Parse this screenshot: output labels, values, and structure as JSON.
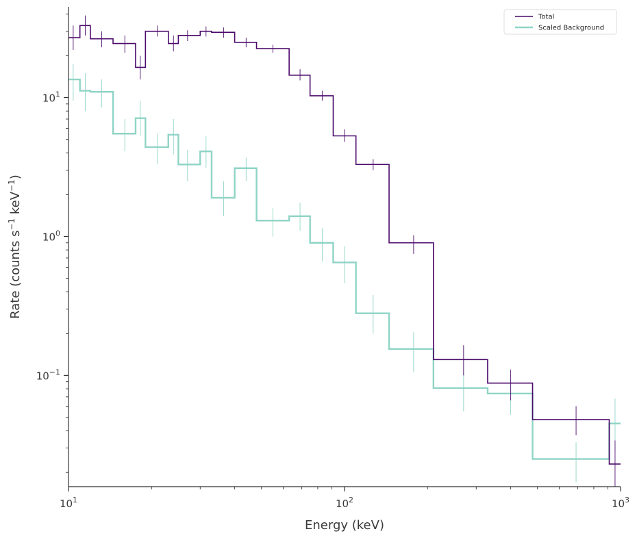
{
  "chart_data": {
    "type": "line",
    "title": "",
    "xlabel": "Energy (keV)",
    "ylabel_main": "Rate (counts s",
    "ylabel_sup1": "−1",
    "ylabel_mid": " keV",
    "ylabel_sup2": "−1",
    "ylabel_end": ")",
    "x_scale": "log",
    "y_scale": "log",
    "xlim": [
      10,
      1000
    ],
    "ylim": [
      0.0158,
      45
    ],
    "x_ticks": [
      {
        "base": "10",
        "exp": "1",
        "value": 10
      },
      {
        "base": "10",
        "exp": "2",
        "value": 100
      },
      {
        "base": "10",
        "exp": "3",
        "value": 1000
      }
    ],
    "y_ticks": [
      {
        "base": "10",
        "exp": "−1",
        "value": 0.1
      },
      {
        "base": "10",
        "exp": "0",
        "value": 1
      },
      {
        "base": "10",
        "exp": "1",
        "value": 10
      }
    ],
    "legend_position": "top-right",
    "grid": false,
    "series": [
      {
        "name": "Total",
        "color": "#4b0a6b",
        "edges": [
          10,
          11,
          12,
          14.5,
          17.5,
          19,
          23,
          25,
          30,
          33,
          40,
          48,
          63,
          75,
          91,
          110,
          145,
          210,
          330,
          480,
          910,
          1000
        ],
        "values": [
          27,
          33,
          26.5,
          24.5,
          16.5,
          30,
          24.5,
          28,
          30,
          29.5,
          25,
          22.5,
          14.5,
          10.3,
          5.3,
          3.3,
          0.9,
          0.13,
          0.088,
          0.048,
          0.023
        ],
        "err_x": [
          10.4,
          11.5,
          13.2,
          16,
          18.2,
          21,
          24,
          27,
          31.5,
          36.5,
          44,
          55,
          69,
          83,
          100,
          127,
          178,
          270,
          400,
          690,
          955
        ],
        "err_lo": [
          22,
          28,
          23,
          21,
          13.5,
          27.5,
          21.5,
          25.5,
          27.5,
          27,
          23,
          21,
          13.3,
          9.5,
          4.8,
          3.0,
          0.75,
          0.1,
          0.066,
          0.037,
          0.014
        ],
        "err_hi": [
          33,
          39,
          30,
          28,
          20,
          33,
          28,
          30.5,
          32.5,
          32,
          27,
          24,
          16,
          11.2,
          5.9,
          3.6,
          1.02,
          0.165,
          0.11,
          0.06,
          0.034
        ]
      },
      {
        "name": "Scaled  Background",
        "color": "#8fd4c6",
        "edges": [
          10,
          11,
          12,
          14.5,
          17.5,
          19,
          23,
          25,
          30,
          33,
          40,
          48,
          63,
          75,
          91,
          110,
          145,
          210,
          330,
          480,
          910,
          1000
        ],
        "values": [
          13.5,
          11.2,
          11,
          5.5,
          7.1,
          4.4,
          5.4,
          3.3,
          4.1,
          1.9,
          3.1,
          1.3,
          1.4,
          0.9,
          0.65,
          0.28,
          0.155,
          0.081,
          0.074,
          0.025,
          0.045
        ],
        "err_x": [
          10.4,
          11.5,
          13.2,
          16,
          18.2,
          21,
          24,
          27,
          31.5,
          36.5,
          44,
          55,
          69,
          83,
          100,
          127,
          178,
          270,
          400,
          690,
          955
        ],
        "err_lo": [
          9.5,
          8,
          8.5,
          4.1,
          5.3,
          3.3,
          3.9,
          2.5,
          3.1,
          1.4,
          2.5,
          1.0,
          1.1,
          0.66,
          0.46,
          0.2,
          0.105,
          0.055,
          0.052,
          0.017,
          0.028
        ],
        "err_hi": [
          17.5,
          15,
          13.5,
          7,
          9.4,
          5.5,
          7,
          4.2,
          5.3,
          2.5,
          3.7,
          1.6,
          1.75,
          1.15,
          0.85,
          0.38,
          0.205,
          0.105,
          0.095,
          0.033,
          0.068
        ]
      }
    ]
  }
}
